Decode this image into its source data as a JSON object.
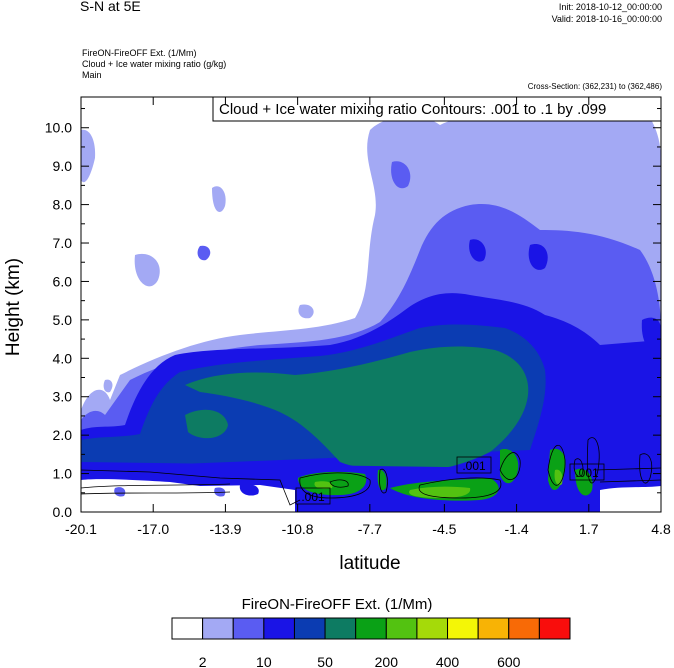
{
  "header": {
    "title": "S-N at 5E",
    "init": "Init: 2018-10-12_00:00:00",
    "valid": "Valid: 2018-10-16_00:00:00",
    "field1": "FireON-FireOFF Ext.   (1/Mm)",
    "field2": "Cloud + Ice water mixing ratio   (g/kg)",
    "field3": "Main",
    "cross_section": "Cross-Section: (362,231) to (362,486)"
  },
  "chart_data": {
    "type": "heatmap",
    "title": "",
    "xlabel": "latitude",
    "ylabel": "Height (km)",
    "xlim": [
      -20.1,
      4.8
    ],
    "ylim": [
      0,
      10.8
    ],
    "x_ticks": [
      "-20.1",
      "-17.0",
      "-13.9",
      "-10.8",
      "-7.7",
      "-4.5",
      "-1.4",
      "1.7",
      "4.8"
    ],
    "y_ticks": [
      "0.0",
      "1.0",
      "2.0",
      "3.0",
      "4.0",
      "5.0",
      "6.0",
      "7.0",
      "8.0",
      "9.0",
      "10.0"
    ],
    "contour_info": "Cloud + Ice water mixing ratio Contours: .001 to .1 by .099",
    "contour_labels": [
      ".001",
      ".001",
      ".001"
    ],
    "colorbar": {
      "title": "FireON-FireOFF Ext.  (1/Mm)",
      "tick_labels": [
        "2",
        "10",
        "50",
        "200",
        "400",
        "600"
      ],
      "colors": [
        "#ffffff",
        "#a3a9f4",
        "#5a5cf2",
        "#1a14e6",
        "#0b3cb2",
        "#0d7b62",
        "#0aa116",
        "#53c211",
        "#a5da09",
        "#f4f606",
        "#f8b305",
        "#f86a06",
        "#f90d0c"
      ]
    },
    "colors": {
      "white": "#ffffff",
      "lavender": "#a3a9f4",
      "periwinkle": "#5a5cf2",
      "blue": "#1a14e6",
      "navy": "#0b3cb2",
      "teal": "#0d7b62",
      "green": "#0aa116",
      "lightgreen": "#53c211"
    }
  }
}
